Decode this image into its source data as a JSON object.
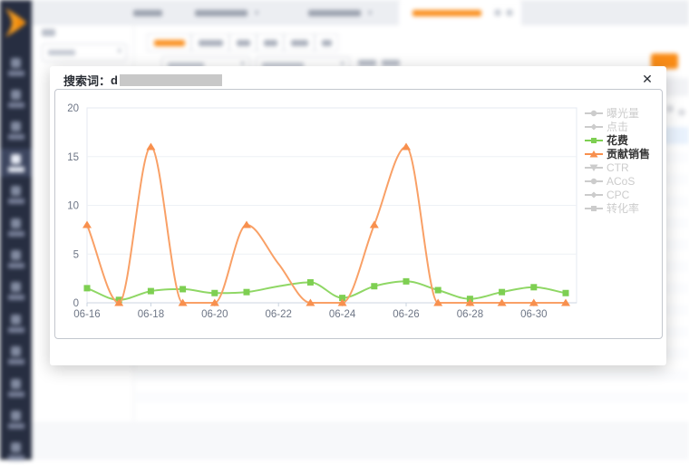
{
  "modal": {
    "title_label": "搜索词：",
    "title_value": "d",
    "title_value_redacted": true,
    "close_icon": "✕"
  },
  "chart_data": {
    "type": "line",
    "title": "",
    "xlabel": "",
    "ylabel": "",
    "ylim": [
      0,
      20
    ],
    "yticks": [
      0,
      5,
      10,
      15,
      20
    ],
    "grid": "horizontal",
    "legend_position": "right",
    "x_categories": [
      "06-16",
      "06-17",
      "06-18",
      "06-19",
      "06-20",
      "06-21",
      "06-22",
      "06-23",
      "06-24",
      "06-25",
      "06-26",
      "06-27",
      "06-28",
      "06-29",
      "06-30",
      "07-01"
    ],
    "x_tick_label_interval": 2,
    "x_labels_visible": [
      "06-16",
      "06-18",
      "06-20",
      "06-22",
      "06-24",
      "06-26",
      "06-28",
      "06-30"
    ],
    "legend": [
      {
        "label": "曝光量",
        "symbol": "circle",
        "active": false
      },
      {
        "label": "点击",
        "symbol": "diamond",
        "active": false
      },
      {
        "label": "花费",
        "symbol": "square",
        "active": true,
        "color": "#7ecf52"
      },
      {
        "label": "贡献销售",
        "symbol": "triangle",
        "active": true,
        "color": "#f8904e"
      },
      {
        "label": "CTR",
        "symbol": "triangle-down",
        "active": false
      },
      {
        "label": "ACoS",
        "symbol": "circle",
        "active": false
      },
      {
        "label": "CPC",
        "symbol": "diamond",
        "active": false
      },
      {
        "label": "转化率",
        "symbol": "square",
        "active": false
      }
    ],
    "series": [
      {
        "name": "花费",
        "symbol": "square",
        "line_color": "#8fd765",
        "marker_color": "#7ecf52",
        "values": [
          1.5,
          0.3,
          1.2,
          1.4,
          1.0,
          1.1,
          1.7,
          2.1,
          0.5,
          1.7,
          2.2,
          1.3,
          0.4,
          1.1,
          1.6,
          1.0
        ]
      },
      {
        "name": "贡献销售",
        "symbol": "triangle",
        "line_color": "#f9a066",
        "marker_color": "#f8904e",
        "values": [
          8,
          0,
          16,
          0,
          0,
          8,
          4,
          0,
          0,
          8,
          16,
          0,
          0,
          0,
          0,
          0
        ]
      }
    ],
    "markers_hidden_at": [
      "06-22"
    ],
    "inactive_color": "#cccccc",
    "axis_label_color": "#6e7686"
  },
  "background": {
    "redacted": true,
    "sidebar": {
      "item_count": 13,
      "active_index": 3,
      "bg_color": "#272e41",
      "logo_color": "#f59a1d"
    },
    "topbar": {
      "tab_count": 4,
      "active_index": 3,
      "accent_color": "#fa9020"
    },
    "subtabs": {
      "count": 6,
      "active_index": 0
    },
    "accent_button_color": "#fa8c16",
    "selected_row_color": "#e9f2fd"
  }
}
